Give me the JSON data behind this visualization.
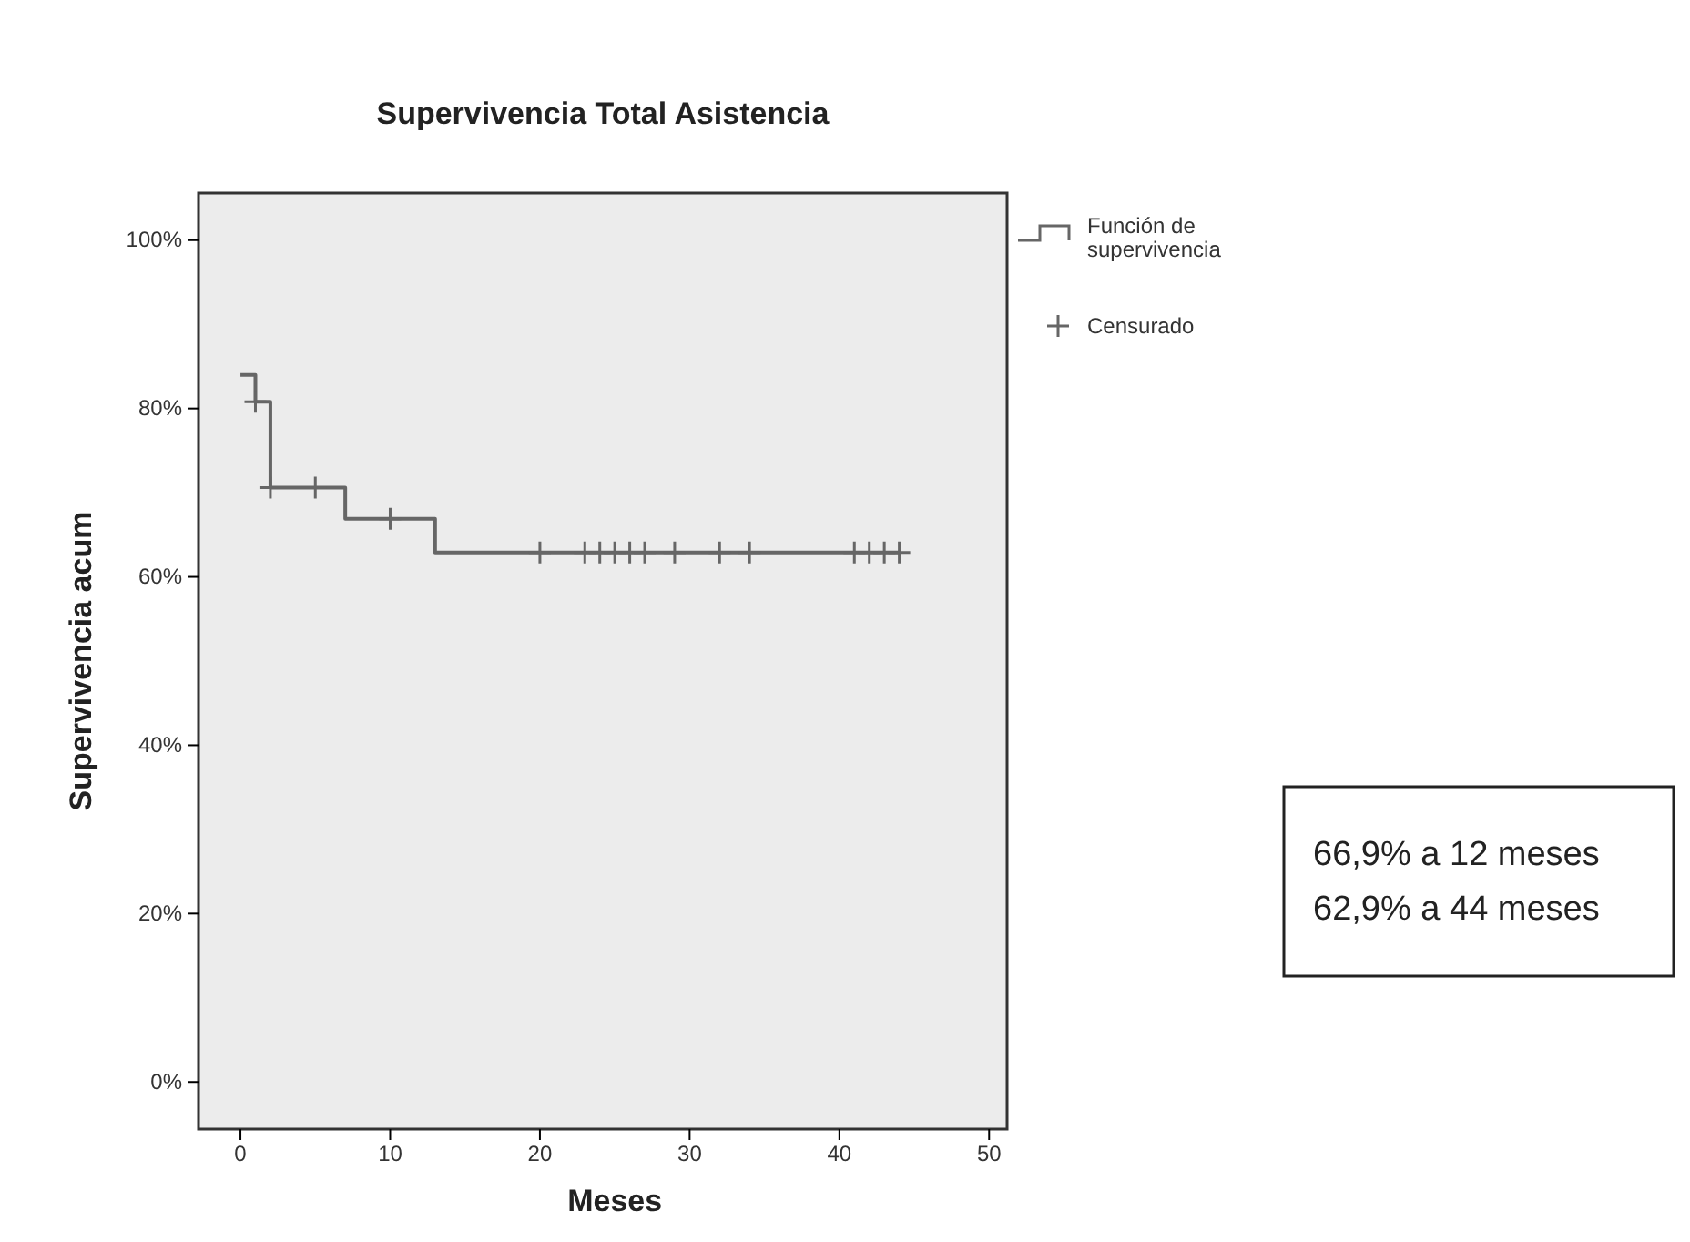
{
  "chart_data": {
    "type": "step",
    "title": "Supervivencia Total Asistencia",
    "xlabel": "Meses",
    "ylabel": "Supervivencia acum",
    "xlim": [
      -2.8,
      51.2
    ],
    "xticks": [
      0,
      10,
      20,
      30,
      40,
      50
    ],
    "ylim": [
      -5.6,
      105.6
    ],
    "yticks": [
      {
        "value": 0,
        "label": "0%"
      },
      {
        "value": 20,
        "label": "20%"
      },
      {
        "value": 40,
        "label": "40%"
      },
      {
        "value": 60,
        "label": "60%"
      },
      {
        "value": 80,
        "label": "80%"
      },
      {
        "value": 100,
        "label": "100%"
      }
    ],
    "series": [
      {
        "name": "Función de supervivencia",
        "color": "#666666",
        "x": [
          0,
          1,
          2,
          7,
          13,
          44
        ],
        "values": [
          84,
          80.8,
          70.6,
          66.9,
          62.9,
          62.9
        ],
        "marker": "none"
      },
      {
        "name": "Censurado",
        "type": "scatter",
        "color": "#666666",
        "marker": "cross",
        "x": [
          1,
          2,
          5,
          10,
          20,
          23,
          24,
          25,
          26,
          27,
          29,
          32,
          34,
          41,
          42,
          43,
          44
        ],
        "values": [
          80.8,
          70.6,
          70.6,
          66.9,
          62.9,
          62.9,
          62.9,
          62.9,
          62.9,
          62.9,
          62.9,
          62.9,
          62.9,
          62.9,
          62.9,
          62.9,
          62.9
        ]
      }
    ],
    "legend": "top right",
    "grid": false,
    "annotations": [
      "66,9% a 12 meses",
      "62,9% a 44 meses"
    ]
  }
}
